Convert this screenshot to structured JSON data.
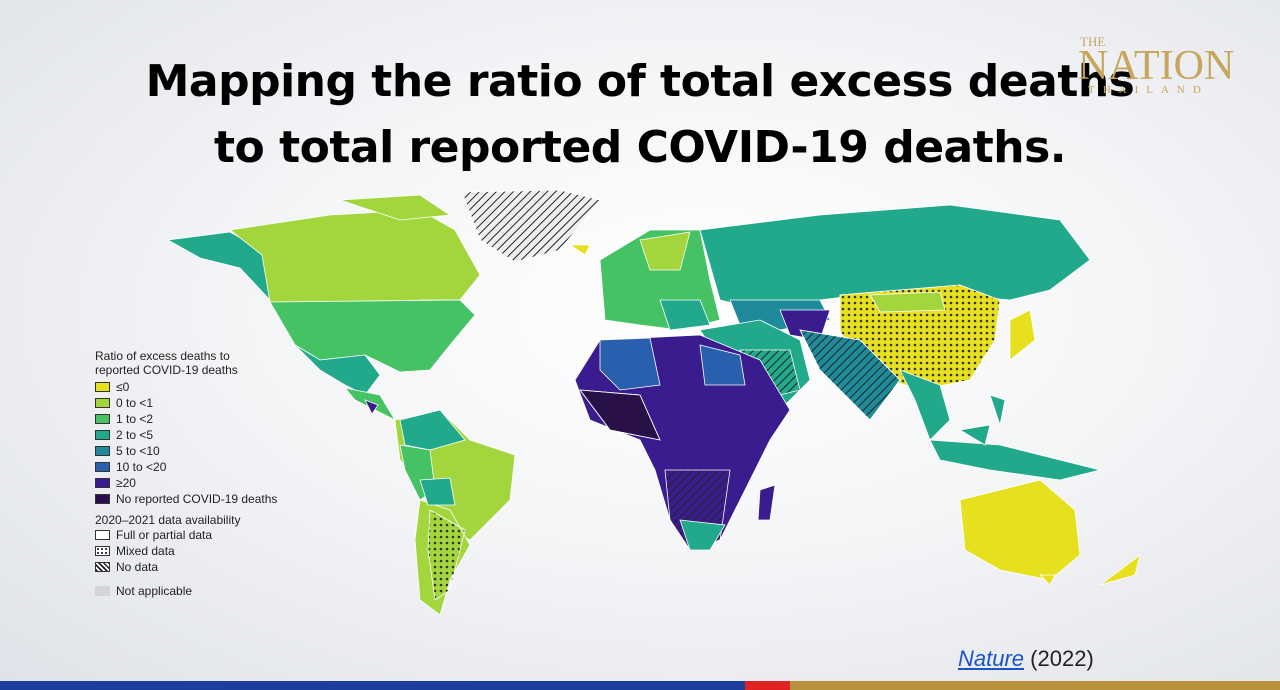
{
  "header": {
    "title_lines": [
      "Mapping the ratio of total excess deaths",
      "to total reported COVID-19 deaths."
    ]
  },
  "logo": {
    "top": "THE",
    "main": "NATION",
    "sub": "THAILAND"
  },
  "legend": {
    "title_lines": [
      "Ratio of excess deaths to",
      "reported COVID-19 deaths"
    ],
    "items": [
      {
        "label": "≤0",
        "color": "#e6e01e"
      },
      {
        "label": "0 to <1",
        "color": "#a3d63c"
      },
      {
        "label": "1 to <2",
        "color": "#45c263"
      },
      {
        "label": "2 to <5",
        "color": "#22a98b"
      },
      {
        "label": "5 to <10",
        "color": "#1f8a9a"
      },
      {
        "label": "10 to <20",
        "color": "#2a5fae"
      },
      {
        "label": "≥20",
        "color": "#3a1c8f"
      },
      {
        "label": "No reported COVID-19 deaths",
        "color": "#2a0d4f"
      }
    ],
    "availability_title": "2020–2021 data availability",
    "availability": [
      "Full or partial data",
      "Mixed data",
      "No data"
    ],
    "not_applicable": "Not applicable"
  },
  "source": {
    "link": "Nature",
    "year": "(2022)"
  }
}
